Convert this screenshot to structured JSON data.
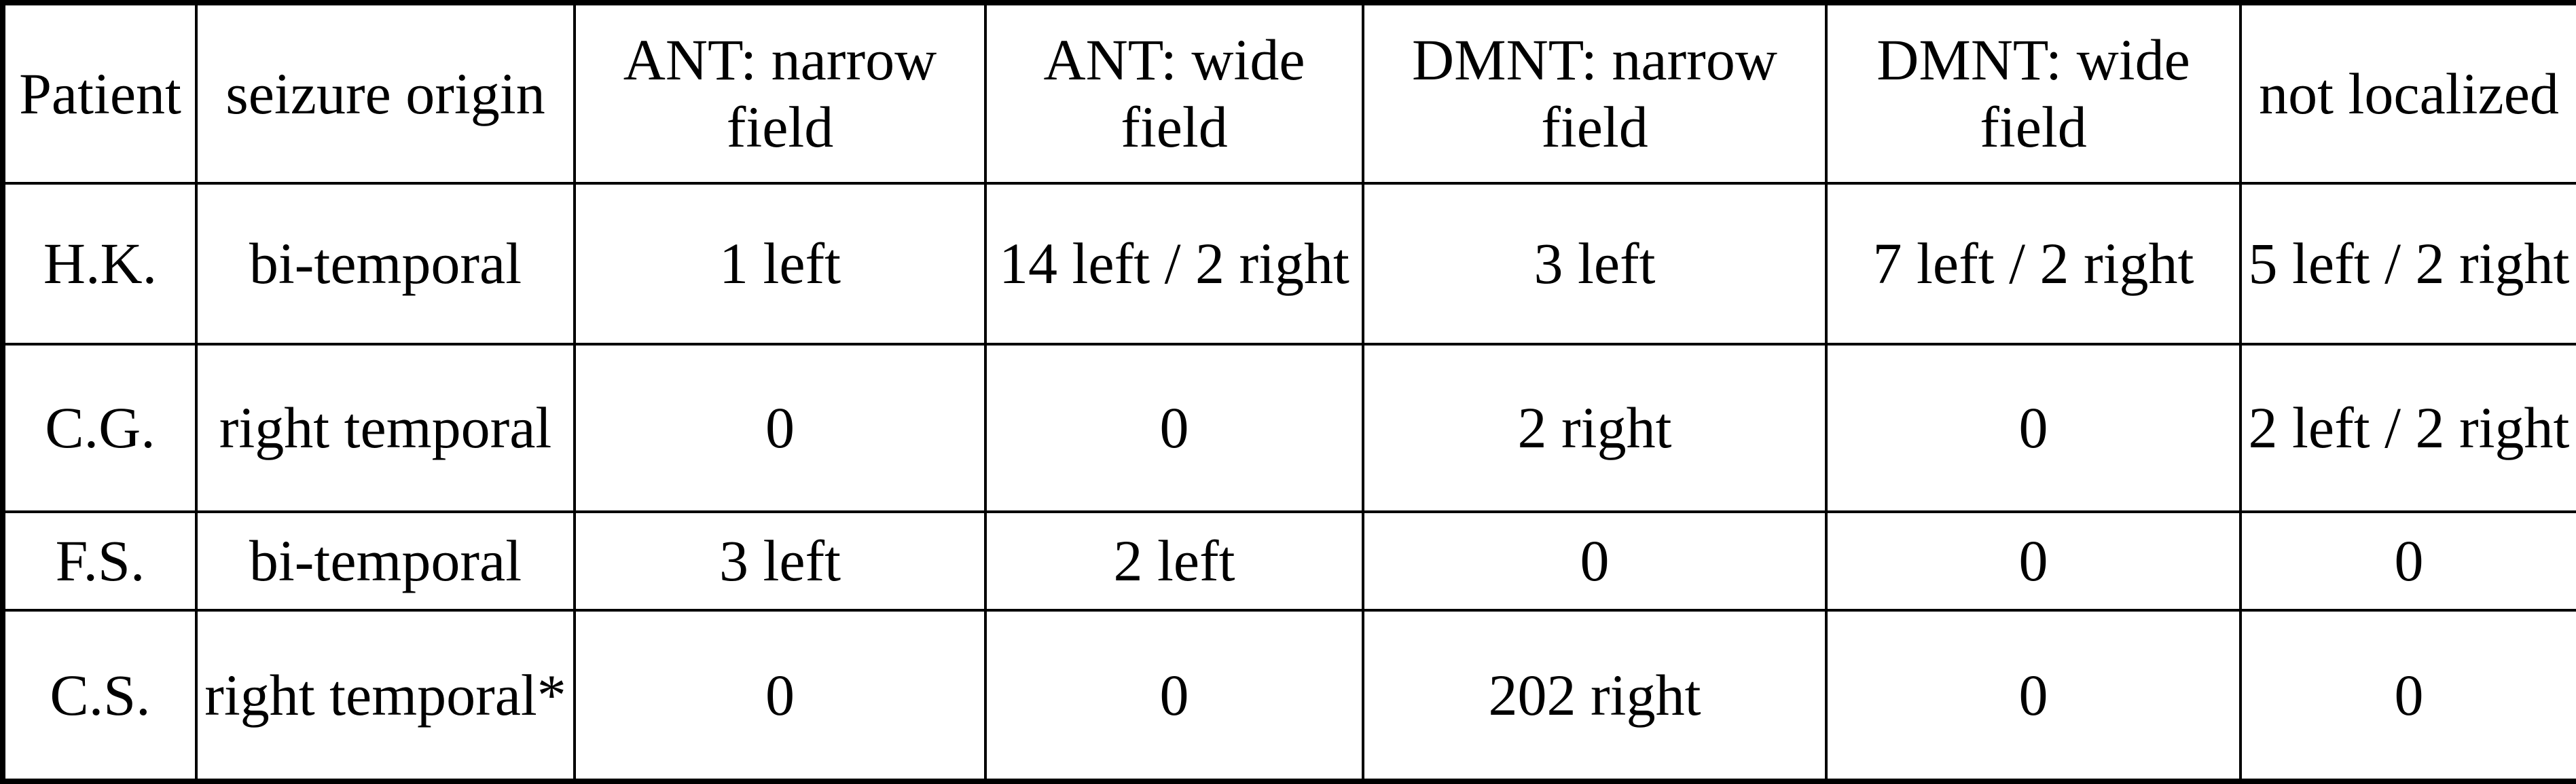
{
  "table": {
    "headers": [
      "Patient",
      "seizure origin",
      "ANT: narrow field",
      "ANT: wide field",
      "DMNT: narrow field",
      "DMNT: wide field",
      "not localized"
    ],
    "rows": [
      [
        "H.K.",
        "bi-temporal",
        "1 left",
        "14 left / 2 right",
        "3 left",
        "7 left / 2 right",
        "5 left / 2 right"
      ],
      [
        "C.G.",
        "right temporal",
        "0",
        "0",
        "2 right",
        "0",
        "2 left / 2 right"
      ],
      [
        "F.S.",
        "bi-temporal",
        "3 left",
        "2 left",
        "0",
        "0",
        "0"
      ],
      [
        "C.S.",
        "right temporal*",
        "0",
        "0",
        "202 right",
        "0",
        "0"
      ]
    ]
  }
}
